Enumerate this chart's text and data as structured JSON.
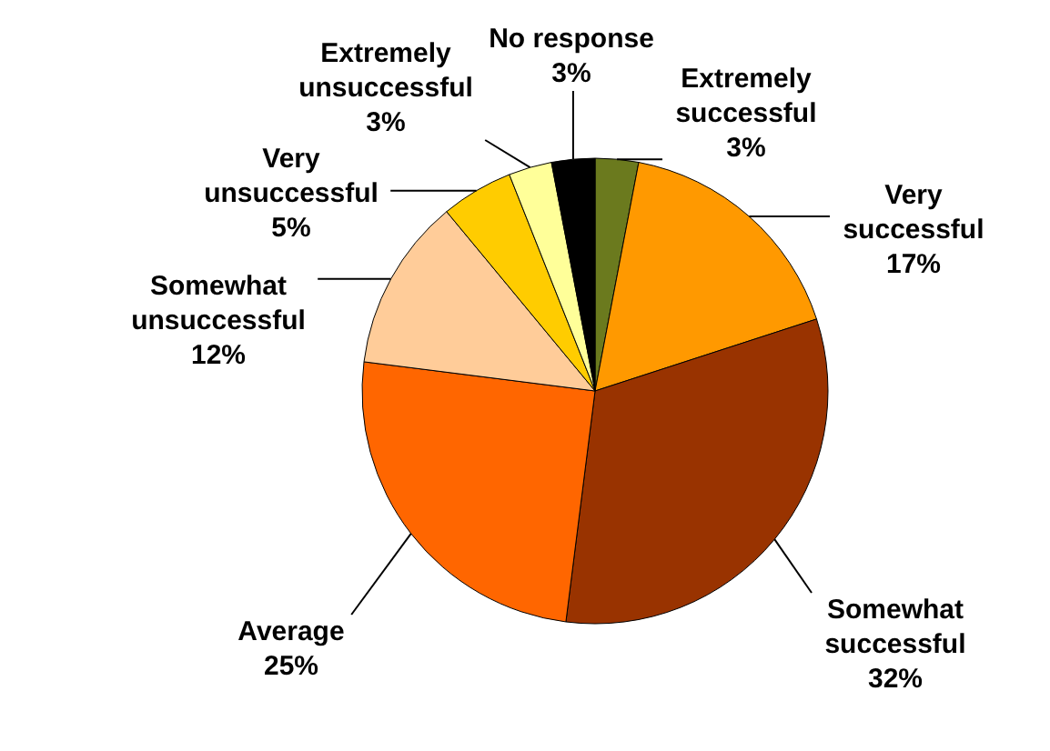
{
  "chart_data": {
    "type": "pie",
    "categories": [
      "Extremely successful",
      "Very successful",
      "Somewhat successful",
      "Average",
      "Somewhat unsuccessful",
      "Very unsuccessful",
      "Extremely unsuccessful",
      "No response"
    ],
    "values": [
      3,
      17,
      32,
      25,
      12,
      5,
      3,
      3
    ],
    "value_labels": [
      "3%",
      "17%",
      "32%",
      "25%",
      "12%",
      "5%",
      "3%",
      "3%"
    ],
    "colors": [
      "#6b7a1e",
      "#ff9900",
      "#993300",
      "#ff6600",
      "#ffcc99",
      "#ffcc00",
      "#ffff99",
      "#000000"
    ],
    "legend": false
  }
}
